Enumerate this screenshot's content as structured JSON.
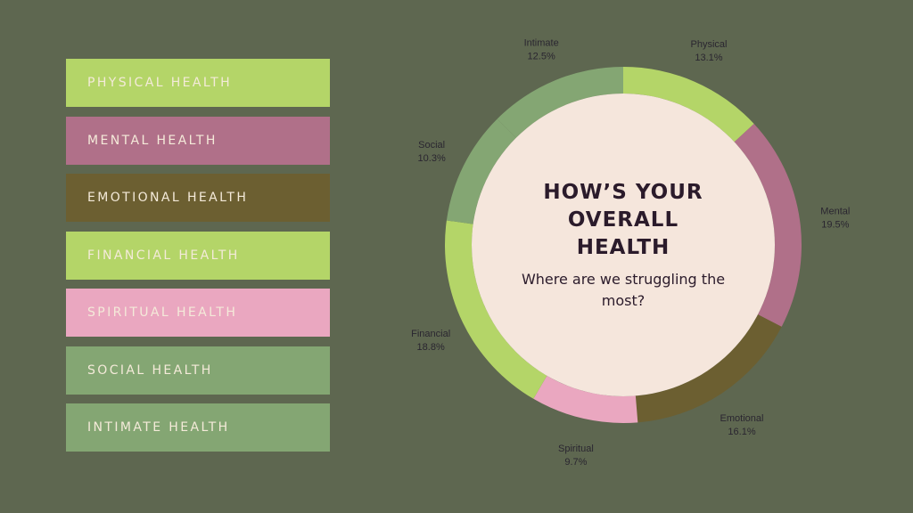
{
  "legend": [
    {
      "label": "PHYSICAL HEALTH",
      "color": "#b4d568"
    },
    {
      "label": "MENTAL HEALTH",
      "color": "#b07089"
    },
    {
      "label": "EMOTIONAL HEALTH",
      "color": "#6c5f31"
    },
    {
      "label": "FINANCIAL HEALTH",
      "color": "#b4d568"
    },
    {
      "label": "SPIRITUAL HEALTH",
      "color": "#eaa7c0"
    },
    {
      "label": "SOCIAL HEALTH",
      "color": "#84a673"
    },
    {
      "label": "INTIMATE HEALTH",
      "color": "#84a673"
    }
  ],
  "center": {
    "title_lines": [
      "HOW’S YOUR",
      "OVERALL",
      "HEALTH"
    ],
    "subtitle": "Where are we struggling the most?",
    "fill": "#f5e6dc"
  },
  "chart_data": {
    "type": "pie",
    "style": "donut",
    "categories": [
      "Physical",
      "Mental",
      "Emotional",
      "Spiritual",
      "Financial",
      "Social",
      "Intimate"
    ],
    "values": [
      13.1,
      19.5,
      16.1,
      9.7,
      18.8,
      10.3,
      12.5
    ],
    "value_labels": [
      "13.1%",
      "19.5%",
      "16.1%",
      "9.7%",
      "18.8%",
      "10.3%",
      "12.5%"
    ],
    "colors": [
      "#b4d568",
      "#b07089",
      "#6c5f31",
      "#eaa7c0",
      "#b4d568",
      "#84a673",
      "#84a673"
    ],
    "start": "top",
    "direction": "clockwise",
    "legend": "left"
  }
}
